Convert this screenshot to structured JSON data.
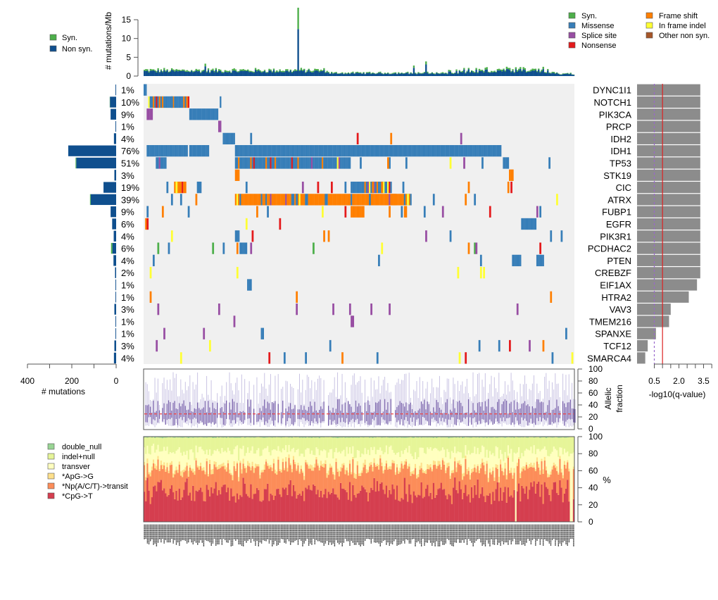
{
  "chart_data": [
    {
      "id": "tmb",
      "type": "bar",
      "title": "",
      "ylabel": "# mutations/Mb",
      "ylim": [
        0,
        18
      ],
      "yticks": [
        0,
        5,
        10,
        15
      ],
      "stacked": true,
      "n_samples": 283,
      "legend": [
        {
          "label": "Syn.",
          "color": "#4daf4a"
        },
        {
          "label": "Non syn.",
          "color": "#0f4f8e"
        }
      ],
      "legend_position": "left",
      "notable": {
        "max_sample_nonsyn": 12.5,
        "max_sample_total": 18.2,
        "typical_total": 1.2
      }
    },
    {
      "id": "oncoprint",
      "type": "heatmap",
      "legend": [
        {
          "label": "Syn.",
          "color": "#4daf4a"
        },
        {
          "label": "Missense",
          "color": "#377eb8"
        },
        {
          "label": "Splice site",
          "color": "#984ea3"
        },
        {
          "label": "Nonsense",
          "color": "#e41a1c"
        },
        {
          "label": "Frame shift",
          "color": "#ff7f00"
        },
        {
          "label": "In frame indel",
          "color": "#ffff33"
        },
        {
          "label": "Other non syn.",
          "color": "#a65628"
        }
      ],
      "legend_position": "top-right",
      "background_color": "#f0f0f0",
      "genes": [
        {
          "name": "DYNC1I1",
          "pct": "1%",
          "nonsyn": 3,
          "syn": 0,
          "neglog10q": 3.3
        },
        {
          "name": "NOTCH1",
          "pct": "10%",
          "nonsyn": 28,
          "syn": 1,
          "neglog10q": 3.3
        },
        {
          "name": "PIK3CA",
          "pct": "9%",
          "nonsyn": 25,
          "syn": 0,
          "neglog10q": 3.3
        },
        {
          "name": "PRCP",
          "pct": "1%",
          "nonsyn": 3,
          "syn": 0,
          "neglog10q": 3.3
        },
        {
          "name": "IDH2",
          "pct": "4%",
          "nonsyn": 10,
          "syn": 0,
          "neglog10q": 3.3
        },
        {
          "name": "IDH1",
          "pct": "76%",
          "nonsyn": 216,
          "syn": 0,
          "neglog10q": 3.3
        },
        {
          "name": "TP53",
          "pct": "51%",
          "nonsyn": 180,
          "syn": 3,
          "neglog10q": 3.3
        },
        {
          "name": "STK19",
          "pct": "3%",
          "nonsyn": 8,
          "syn": 0,
          "neglog10q": 3.3
        },
        {
          "name": "CIC",
          "pct": "19%",
          "nonsyn": 57,
          "syn": 0,
          "neglog10q": 3.3
        },
        {
          "name": "ATRX",
          "pct": "39%",
          "nonsyn": 115,
          "syn": 3,
          "neglog10q": 3.3
        },
        {
          "name": "FUBP1",
          "pct": "9%",
          "nonsyn": 25,
          "syn": 0,
          "neglog10q": 3.3
        },
        {
          "name": "EGFR",
          "pct": "6%",
          "nonsyn": 18,
          "syn": 0,
          "neglog10q": 3.3
        },
        {
          "name": "PIK3R1",
          "pct": "4%",
          "nonsyn": 11,
          "syn": 0,
          "neglog10q": 3.3
        },
        {
          "name": "PCDHAC2",
          "pct": "6%",
          "nonsyn": 17,
          "syn": 6,
          "neglog10q": 3.3
        },
        {
          "name": "PTEN",
          "pct": "4%",
          "nonsyn": 12,
          "syn": 0,
          "neglog10q": 3.3
        },
        {
          "name": "CREBZF",
          "pct": "2%",
          "nonsyn": 5,
          "syn": 0,
          "neglog10q": 3.3
        },
        {
          "name": "EIF1AX",
          "pct": "1%",
          "nonsyn": 3,
          "syn": 0,
          "neglog10q": 3.1
        },
        {
          "name": "HTRA2",
          "pct": "1%",
          "nonsyn": 3,
          "syn": 0,
          "neglog10q": 2.6
        },
        {
          "name": "VAV3",
          "pct": "3%",
          "nonsyn": 8,
          "syn": 0,
          "neglog10q": 1.5
        },
        {
          "name": "TMEM216",
          "pct": "1%",
          "nonsyn": 3,
          "syn": 0,
          "neglog10q": 1.4
        },
        {
          "name": "SPANXE",
          "pct": "1%",
          "nonsyn": 3,
          "syn": 0,
          "neglog10q": 0.6
        },
        {
          "name": "TCF12",
          "pct": "3%",
          "nonsyn": 8,
          "syn": 0,
          "neglog10q": 0.1
        },
        {
          "name": "SMARCA4",
          "pct": "4%",
          "nonsyn": 10,
          "syn": 0,
          "neglog10q": -0.05
        }
      ]
    },
    {
      "id": "gene-counts",
      "type": "bar",
      "orientation": "horizontal",
      "xlabel": "# mutations",
      "xlim": [
        400,
        0
      ],
      "xtick_labels": [
        "400",
        "200",
        "0"
      ],
      "xticks": [
        400,
        300,
        200,
        100,
        0
      ]
    },
    {
      "id": "qvalues",
      "type": "bar",
      "orientation": "horizontal",
      "xlabel": "-log10(q-value)",
      "xlim": [
        0,
        4
      ],
      "xtick_labels": [
        "0.5",
        "2.0",
        "3.5"
      ],
      "xtick_label_values": [
        0.5,
        2.0,
        3.5
      ],
      "xticks": [
        0.5,
        1.0,
        1.5,
        2.0,
        2.5,
        3.0,
        3.5,
        4.0
      ],
      "reference_lines": [
        {
          "value": 0.5,
          "color": "#9966cc",
          "style": "dashed"
        },
        {
          "value": 1.0,
          "color": "#dd2222",
          "style": "solid"
        }
      ],
      "bar_color": "#8c8c8c"
    },
    {
      "id": "allelic-fraction",
      "type": "scatter",
      "ylabel": "Allelic fraction",
      "ylim": [
        0,
        100
      ],
      "yticks": [
        0,
        20,
        40,
        60,
        80,
        100
      ],
      "reference_line": {
        "value": 25,
        "color": "#ee4444",
        "style": "dashed"
      },
      "colors": {
        "range": "#c9c3e3",
        "iqr": "#6a51a3"
      }
    },
    {
      "id": "mutation-spectrum",
      "type": "bar",
      "stacked": true,
      "ylabel": "%",
      "ylim": [
        0,
        100
      ],
      "yticks": [
        0,
        20,
        40,
        60,
        80,
        100
      ],
      "legend_position": "left",
      "series": [
        {
          "name": "*CpG->T",
          "color": "#d53e4f",
          "mean_pct": 36
        },
        {
          "name": "*Np(A/C/T)->transit",
          "color": "#fc8d59",
          "mean_pct": 26
        },
        {
          "name": "*ApG->G",
          "color": "#fee08b",
          "mean_pct": 4
        },
        {
          "name": "transver",
          "color": "#ffffbf",
          "mean_pct": 17
        },
        {
          "name": "indel+null",
          "color": "#e6f598",
          "mean_pct": 16
        },
        {
          "name": "double_null",
          "color": "#99d594",
          "mean_pct": 1
        }
      ],
      "legend_order": [
        "double_null",
        "indel+null",
        "transver",
        "*ApG->G",
        "*Np(A/C/T)->transit",
        "*CpG->T"
      ]
    }
  ]
}
